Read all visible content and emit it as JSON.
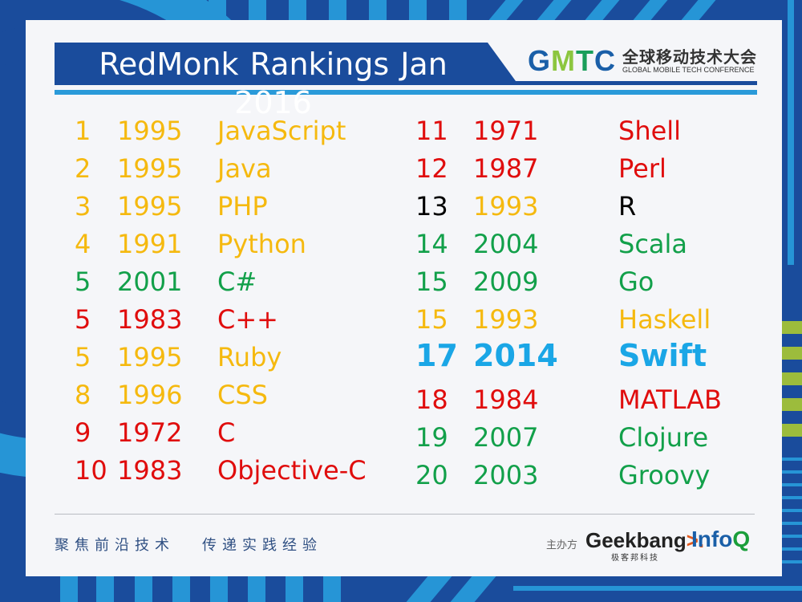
{
  "slide": {
    "title": "RedMonk Rankings Jan 2016",
    "logo": {
      "brand_letters": [
        "G",
        "M",
        "T",
        "C"
      ],
      "cn_name": "全球移动技术大会",
      "en_name": "GLOBAL MOBILE TECH CONFERENCE"
    },
    "footer": {
      "slogan_left": "聚焦前沿技术",
      "slogan_right": "传递实践经验",
      "sponsor_label": "主办方",
      "sponsor_geekbang": "Geekbang",
      "sponsor_geekbang_suffix": ">.",
      "sponsor_geekbang_cn": "极客邦科技",
      "sponsor_infoq": "Info",
      "sponsor_infoq_q": "Q"
    },
    "colors": {
      "yellow": "#f5b90f",
      "green": "#12a04a",
      "red": "#e00d0d",
      "black": "#000000",
      "blue": "#1aa6e6",
      "navy": "#1a4c9c",
      "light_blue": "#2695d6"
    }
  },
  "chart_data": {
    "type": "table",
    "title": "RedMonk Rankings Jan 2016",
    "columns": [
      "rank",
      "year",
      "language"
    ],
    "rows": [
      {
        "rank": "1",
        "year": "1995",
        "language": "JavaScript",
        "rank_color": "yellow",
        "year_color": "yellow",
        "lang_color": "yellow"
      },
      {
        "rank": "2",
        "year": "1995",
        "language": "Java",
        "rank_color": "yellow",
        "year_color": "yellow",
        "lang_color": "yellow"
      },
      {
        "rank": "3",
        "year": "1995",
        "language": "PHP",
        "rank_color": "yellow",
        "year_color": "yellow",
        "lang_color": "yellow"
      },
      {
        "rank": "4",
        "year": "1991",
        "language": "Python",
        "rank_color": "yellow",
        "year_color": "yellow",
        "lang_color": "yellow"
      },
      {
        "rank": "5",
        "year": "2001",
        "language": "C#",
        "rank_color": "green",
        "year_color": "green",
        "lang_color": "green"
      },
      {
        "rank": "5",
        "year": "1983",
        "language": "C++",
        "rank_color": "red",
        "year_color": "red",
        "lang_color": "red"
      },
      {
        "rank": "5",
        "year": "1995",
        "language": "Ruby",
        "rank_color": "yellow",
        "year_color": "yellow",
        "lang_color": "yellow"
      },
      {
        "rank": "8",
        "year": "1996",
        "language": "CSS",
        "rank_color": "yellow",
        "year_color": "yellow",
        "lang_color": "yellow"
      },
      {
        "rank": "9",
        "year": "1972",
        "language": "C",
        "rank_color": "red",
        "year_color": "red",
        "lang_color": "red"
      },
      {
        "rank": "10",
        "year": "1983",
        "language": "Objective-C",
        "rank_color": "red",
        "year_color": "red",
        "lang_color": "red"
      },
      {
        "rank": "11",
        "year": "1971",
        "language": "Shell",
        "rank_color": "red",
        "year_color": "red",
        "lang_color": "red"
      },
      {
        "rank": "12",
        "year": "1987",
        "language": "Perl",
        "rank_color": "red",
        "year_color": "red",
        "lang_color": "red"
      },
      {
        "rank": "13",
        "year": "1993",
        "language": "R",
        "rank_color": "black",
        "year_color": "yellow",
        "lang_color": "black"
      },
      {
        "rank": "14",
        "year": "2004",
        "language": "Scala",
        "rank_color": "green",
        "year_color": "green",
        "lang_color": "green"
      },
      {
        "rank": "15",
        "year": "2009",
        "language": "Go",
        "rank_color": "green",
        "year_color": "green",
        "lang_color": "green"
      },
      {
        "rank": "15",
        "year": "1993",
        "language": "Haskell",
        "rank_color": "yellow",
        "year_color": "yellow",
        "lang_color": "yellow"
      },
      {
        "rank": "17",
        "year": "2014",
        "language": "Swift",
        "rank_color": "blue",
        "year_color": "blue",
        "lang_color": "blue",
        "bold": true
      },
      {
        "rank": "18",
        "year": "1984",
        "language": "MATLAB",
        "rank_color": "red",
        "year_color": "red",
        "lang_color": "red"
      },
      {
        "rank": "19",
        "year": "2007",
        "language": "Clojure",
        "rank_color": "green",
        "year_color": "green",
        "lang_color": "green"
      },
      {
        "rank": "20",
        "year": "2003",
        "language": "Groovy",
        "rank_color": "green",
        "year_color": "green",
        "lang_color": "green"
      }
    ]
  }
}
